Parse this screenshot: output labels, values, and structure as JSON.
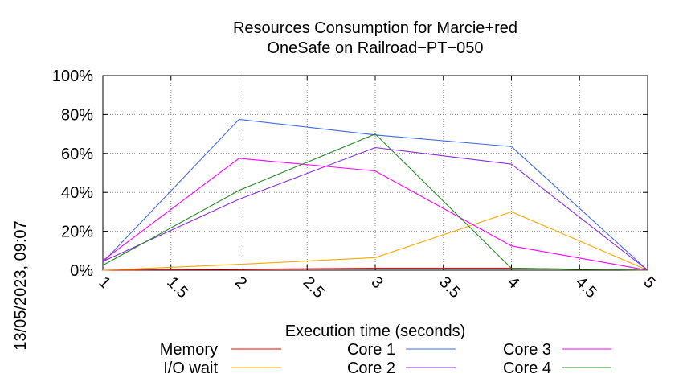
{
  "chart_data": {
    "type": "line",
    "title_line1": "Resources Consumption for Marcie+red",
    "title_line2": "OneSafe on Railroad−PT−050",
    "xlabel": "Execution time (seconds)",
    "ylabel": "",
    "side_label": "13/05/2023, 09:07",
    "xlim": [
      1,
      5
    ],
    "ylim": [
      0,
      100
    ],
    "xticks": [
      "1",
      "1.5",
      "2",
      "2.5",
      "3",
      "3.5",
      "4",
      "4.5",
      "5"
    ],
    "yticks": [
      "0%",
      "20%",
      "40%",
      "60%",
      "80%",
      "100%"
    ],
    "grid": true,
    "legend_position": "bottom",
    "x": [
      1,
      2,
      3,
      4,
      5
    ],
    "series": [
      {
        "name": "Memory",
        "color": "#ff0000",
        "values": [
          0,
          0.5,
          1,
          1,
          0
        ]
      },
      {
        "name": "I/O wait",
        "color": "#ffa500",
        "values": [
          0,
          3,
          6.5,
          30,
          0
        ]
      },
      {
        "name": "Core 1",
        "color": "#4169e1",
        "values": [
          4,
          77.5,
          69.5,
          63.5,
          0
        ]
      },
      {
        "name": "Core 2",
        "color": "#8a2be2",
        "values": [
          4.5,
          36.5,
          63,
          54.5,
          0
        ]
      },
      {
        "name": "Core 3",
        "color": "#ff00ff",
        "values": [
          5,
          57.5,
          51,
          12.5,
          0
        ]
      },
      {
        "name": "Core 4",
        "color": "#228b22",
        "values": [
          2.5,
          41,
          70,
          1,
          0
        ]
      }
    ]
  }
}
